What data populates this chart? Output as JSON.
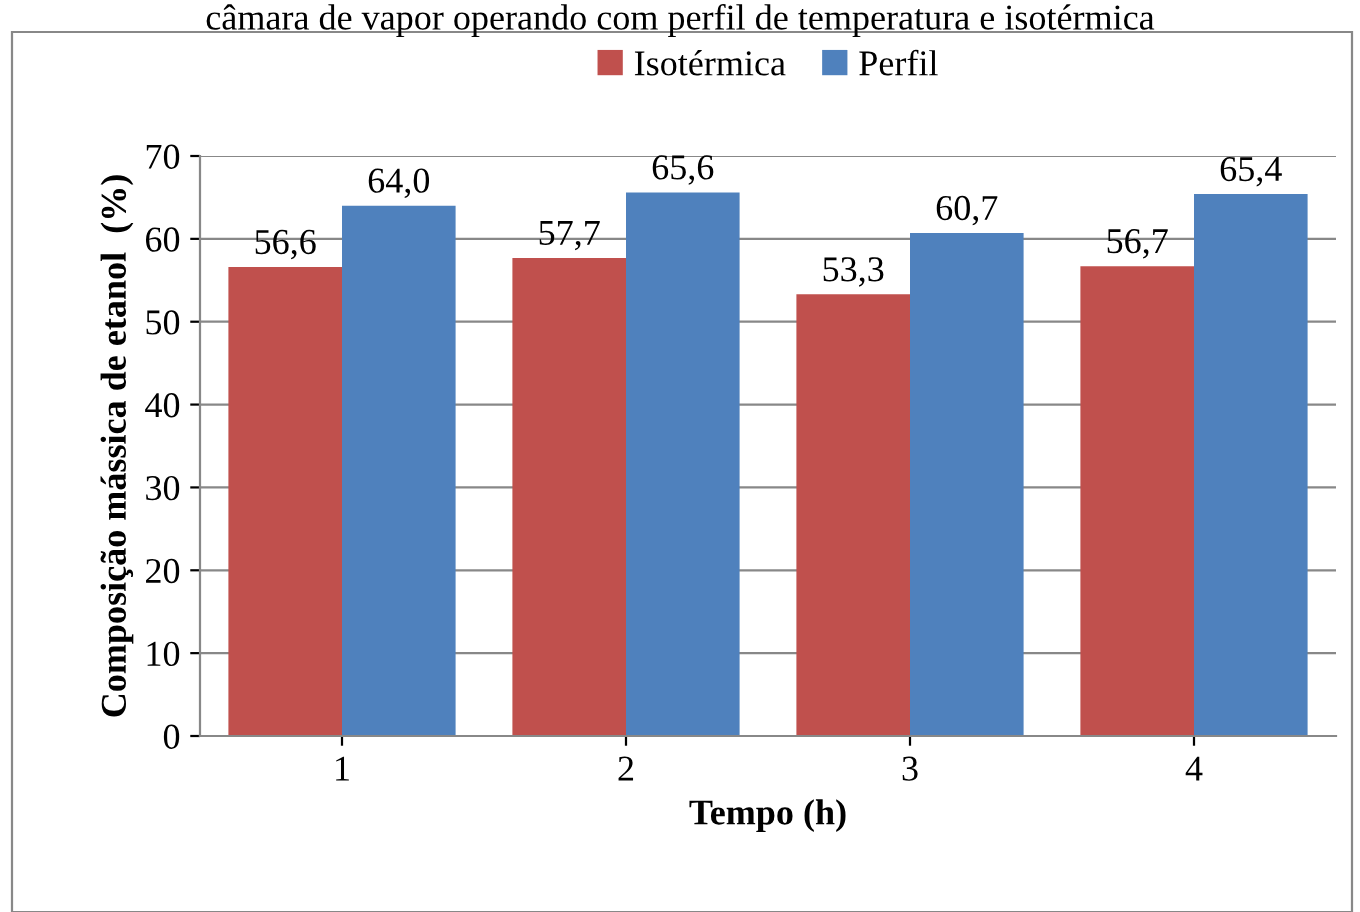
{
  "chart_data": {
    "type": "bar",
    "title": "câmara de vapor operando com perfil de temperatura e isotérmica",
    "xlabel": "Tempo (h)",
    "ylabel": "Composição mássica de etanol  (%)",
    "categories": [
      "1",
      "2",
      "3",
      "4"
    ],
    "series": [
      {
        "name": "Isotérmica",
        "color": "#c0504d",
        "values": [
          56.6,
          57.7,
          53.3,
          56.7
        ],
        "value_labels": [
          "56,6",
          "57,7",
          "53,3",
          "56,7"
        ]
      },
      {
        "name": "Perfil",
        "color": "#4f81bd",
        "values": [
          64.0,
          65.6,
          60.7,
          65.4
        ],
        "value_labels": [
          "64,0",
          "65,6",
          "60,7",
          "65,4"
        ]
      }
    ],
    "ylim": [
      0,
      70
    ],
    "yticks": [
      0,
      10,
      20,
      30,
      40,
      50,
      60,
      70
    ],
    "grid": "y",
    "legend": "top"
  }
}
